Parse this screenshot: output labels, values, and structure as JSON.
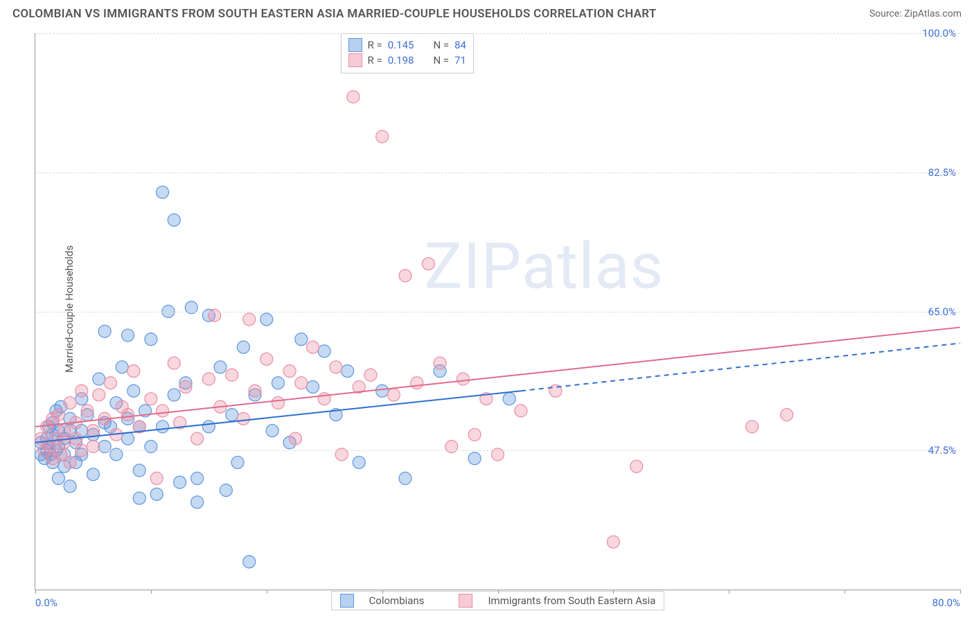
{
  "header": {
    "title": "COLOMBIAN VS IMMIGRANTS FROM SOUTH EASTERN ASIA MARRIED-COUPLE HOUSEHOLDS CORRELATION CHART",
    "source": "Source: ZipAtlas.com"
  },
  "chart": {
    "type": "scatter",
    "ylabel": "Married-couple Households",
    "watermark": "ZIPatlas",
    "background_color": "#ffffff",
    "grid_color": "#dcdcdc",
    "axis_color": "#999999",
    "xlim": [
      0,
      80
    ],
    "ylim": [
      30,
      100
    ],
    "xticks": [
      0,
      10,
      20,
      30,
      40,
      50,
      60,
      70,
      80
    ],
    "xtick_labels_visible": {
      "0": "0.0%",
      "80": "80.0%"
    },
    "yticks": [
      47.5,
      65.0,
      82.5,
      100.0
    ],
    "ytick_labels": [
      "47.5%",
      "65.0%",
      "82.5%",
      "100.0%"
    ],
    "marker_radius": 9,
    "marker_fill_opacity": 0.35,
    "marker_stroke_width": 1.2,
    "line_width": 2,
    "legend_top": {
      "rows": [
        {
          "label_r": "R =",
          "val_r": "0.145",
          "label_n": "N =",
          "val_n": "84"
        },
        {
          "label_r": "R =",
          "val_r": "0.198",
          "label_n": "N =",
          "val_n": "71"
        }
      ]
    },
    "legend_bottom": {
      "series1": "Colombians",
      "series2": "Immigrants from South Eastern Asia"
    },
    "series": [
      {
        "name": "Colombians",
        "color_fill": "rgba(93,150,222,0.35)",
        "color_stroke": "#5d96de",
        "line_color": "#2f6fd0",
        "line_dash_color": "#2f6fd0",
        "trend": {
          "x1": 0,
          "y1": 48.5,
          "x2": 42,
          "y2": 55.0,
          "x3": 80,
          "y3": 61.0
        },
        "points": [
          [
            0.5,
            47.0
          ],
          [
            0.5,
            48.5
          ],
          [
            0.8,
            46.5
          ],
          [
            1.0,
            49.0
          ],
          [
            1.0,
            47.5
          ],
          [
            1.2,
            50.5
          ],
          [
            1.2,
            48.0
          ],
          [
            1.3,
            47.0
          ],
          [
            1.5,
            46.0
          ],
          [
            1.5,
            49.5
          ],
          [
            1.5,
            51.0
          ],
          [
            1.8,
            52.5
          ],
          [
            1.8,
            47.5
          ],
          [
            2.0,
            44.0
          ],
          [
            2.0,
            48.0
          ],
          [
            2.0,
            50.0
          ],
          [
            2.2,
            53.0
          ],
          [
            2.5,
            45.5
          ],
          [
            2.5,
            49.0
          ],
          [
            2.5,
            47.0
          ],
          [
            3.0,
            43.0
          ],
          [
            3.0,
            51.5
          ],
          [
            3.0,
            50.0
          ],
          [
            3.5,
            48.5
          ],
          [
            3.5,
            46.0
          ],
          [
            4.0,
            54.0
          ],
          [
            4.0,
            50.0
          ],
          [
            4.0,
            47.0
          ],
          [
            4.5,
            52.0
          ],
          [
            5.0,
            49.5
          ],
          [
            5.0,
            44.5
          ],
          [
            5.5,
            56.5
          ],
          [
            6.0,
            62.5
          ],
          [
            6.0,
            51.0
          ],
          [
            6.0,
            48.0
          ],
          [
            6.5,
            50.5
          ],
          [
            7.0,
            53.5
          ],
          [
            7.0,
            47.0
          ],
          [
            7.5,
            58.0
          ],
          [
            8.0,
            62.0
          ],
          [
            8.0,
            51.5
          ],
          [
            8.0,
            49.0
          ],
          [
            8.5,
            55.0
          ],
          [
            9.0,
            41.5
          ],
          [
            9.0,
            45.0
          ],
          [
            9.0,
            50.5
          ],
          [
            9.5,
            52.5
          ],
          [
            10.0,
            61.5
          ],
          [
            10.0,
            48.0
          ],
          [
            10.5,
            42.0
          ],
          [
            11.0,
            80.0
          ],
          [
            11.0,
            50.5
          ],
          [
            11.5,
            65.0
          ],
          [
            12.0,
            54.5
          ],
          [
            12.0,
            76.5
          ],
          [
            12.5,
            43.5
          ],
          [
            13.0,
            56.0
          ],
          [
            13.5,
            65.5
          ],
          [
            14.0,
            44.0
          ],
          [
            14.0,
            41.0
          ],
          [
            15.0,
            64.5
          ],
          [
            15.0,
            50.5
          ],
          [
            16.0,
            58.0
          ],
          [
            16.5,
            42.5
          ],
          [
            17.0,
            52.0
          ],
          [
            17.5,
            46.0
          ],
          [
            18.0,
            60.5
          ],
          [
            18.5,
            33.5
          ],
          [
            19.0,
            54.5
          ],
          [
            20.0,
            64.0
          ],
          [
            20.5,
            50.0
          ],
          [
            21.0,
            56.0
          ],
          [
            22.0,
            48.5
          ],
          [
            23.0,
            61.5
          ],
          [
            24.0,
            55.5
          ],
          [
            25.0,
            60.0
          ],
          [
            26.0,
            52.0
          ],
          [
            27.0,
            57.5
          ],
          [
            28.0,
            46.0
          ],
          [
            30.0,
            55.0
          ],
          [
            32.0,
            44.0
          ],
          [
            35.0,
            57.5
          ],
          [
            38.0,
            46.5
          ],
          [
            41.0,
            54.0
          ]
        ]
      },
      {
        "name": "Immigrants from South Eastern Asia",
        "color_fill": "rgba(234,140,164,0.35)",
        "color_stroke": "#ea8ca4",
        "line_color": "#e06b8a",
        "trend": {
          "x1": 0,
          "y1": 50.5,
          "x2": 80,
          "y2": 63.0
        },
        "points": [
          [
            0.5,
            49.0
          ],
          [
            0.8,
            47.5
          ],
          [
            1.0,
            50.5
          ],
          [
            1.2,
            48.0
          ],
          [
            1.5,
            46.5
          ],
          [
            1.5,
            51.5
          ],
          [
            1.8,
            49.0
          ],
          [
            2.0,
            52.0
          ],
          [
            2.2,
            47.0
          ],
          [
            2.5,
            50.0
          ],
          [
            2.5,
            48.5
          ],
          [
            3.0,
            53.5
          ],
          [
            3.0,
            46.0
          ],
          [
            3.5,
            51.0
          ],
          [
            3.5,
            49.0
          ],
          [
            4.0,
            55.0
          ],
          [
            4.0,
            47.5
          ],
          [
            4.5,
            52.5
          ],
          [
            5.0,
            50.0
          ],
          [
            5.0,
            48.0
          ],
          [
            5.5,
            54.5
          ],
          [
            6.0,
            51.5
          ],
          [
            6.5,
            56.0
          ],
          [
            7.0,
            49.5
          ],
          [
            7.5,
            53.0
          ],
          [
            8.0,
            52.0
          ],
          [
            8.5,
            57.5
          ],
          [
            9.0,
            50.5
          ],
          [
            10.0,
            54.0
          ],
          [
            10.5,
            44.0
          ],
          [
            11.0,
            52.5
          ],
          [
            12.0,
            58.5
          ],
          [
            12.5,
            51.0
          ],
          [
            13.0,
            55.5
          ],
          [
            14.0,
            49.0
          ],
          [
            15.0,
            56.5
          ],
          [
            15.5,
            64.5
          ],
          [
            16.0,
            53.0
          ],
          [
            17.0,
            57.0
          ],
          [
            18.0,
            51.5
          ],
          [
            18.5,
            64.0
          ],
          [
            19.0,
            55.0
          ],
          [
            20.0,
            59.0
          ],
          [
            21.0,
            53.5
          ],
          [
            22.0,
            57.5
          ],
          [
            22.5,
            49.0
          ],
          [
            23.0,
            56.0
          ],
          [
            24.0,
            60.5
          ],
          [
            25.0,
            54.0
          ],
          [
            26.0,
            58.0
          ],
          [
            26.5,
            47.0
          ],
          [
            27.5,
            92.0
          ],
          [
            28.0,
            55.5
          ],
          [
            29.0,
            57.0
          ],
          [
            30.0,
            87.0
          ],
          [
            31.0,
            54.5
          ],
          [
            32.0,
            69.5
          ],
          [
            33.0,
            56.0
          ],
          [
            34.0,
            71.0
          ],
          [
            35.0,
            58.5
          ],
          [
            36.0,
            48.0
          ],
          [
            37.0,
            56.5
          ],
          [
            38.0,
            49.5
          ],
          [
            39.0,
            54.0
          ],
          [
            40.0,
            47.0
          ],
          [
            42.0,
            52.5
          ],
          [
            45.0,
            55.0
          ],
          [
            50.0,
            36.0
          ],
          [
            52.0,
            45.5
          ],
          [
            62.0,
            50.5
          ],
          [
            65.0,
            52.0
          ]
        ]
      }
    ]
  }
}
